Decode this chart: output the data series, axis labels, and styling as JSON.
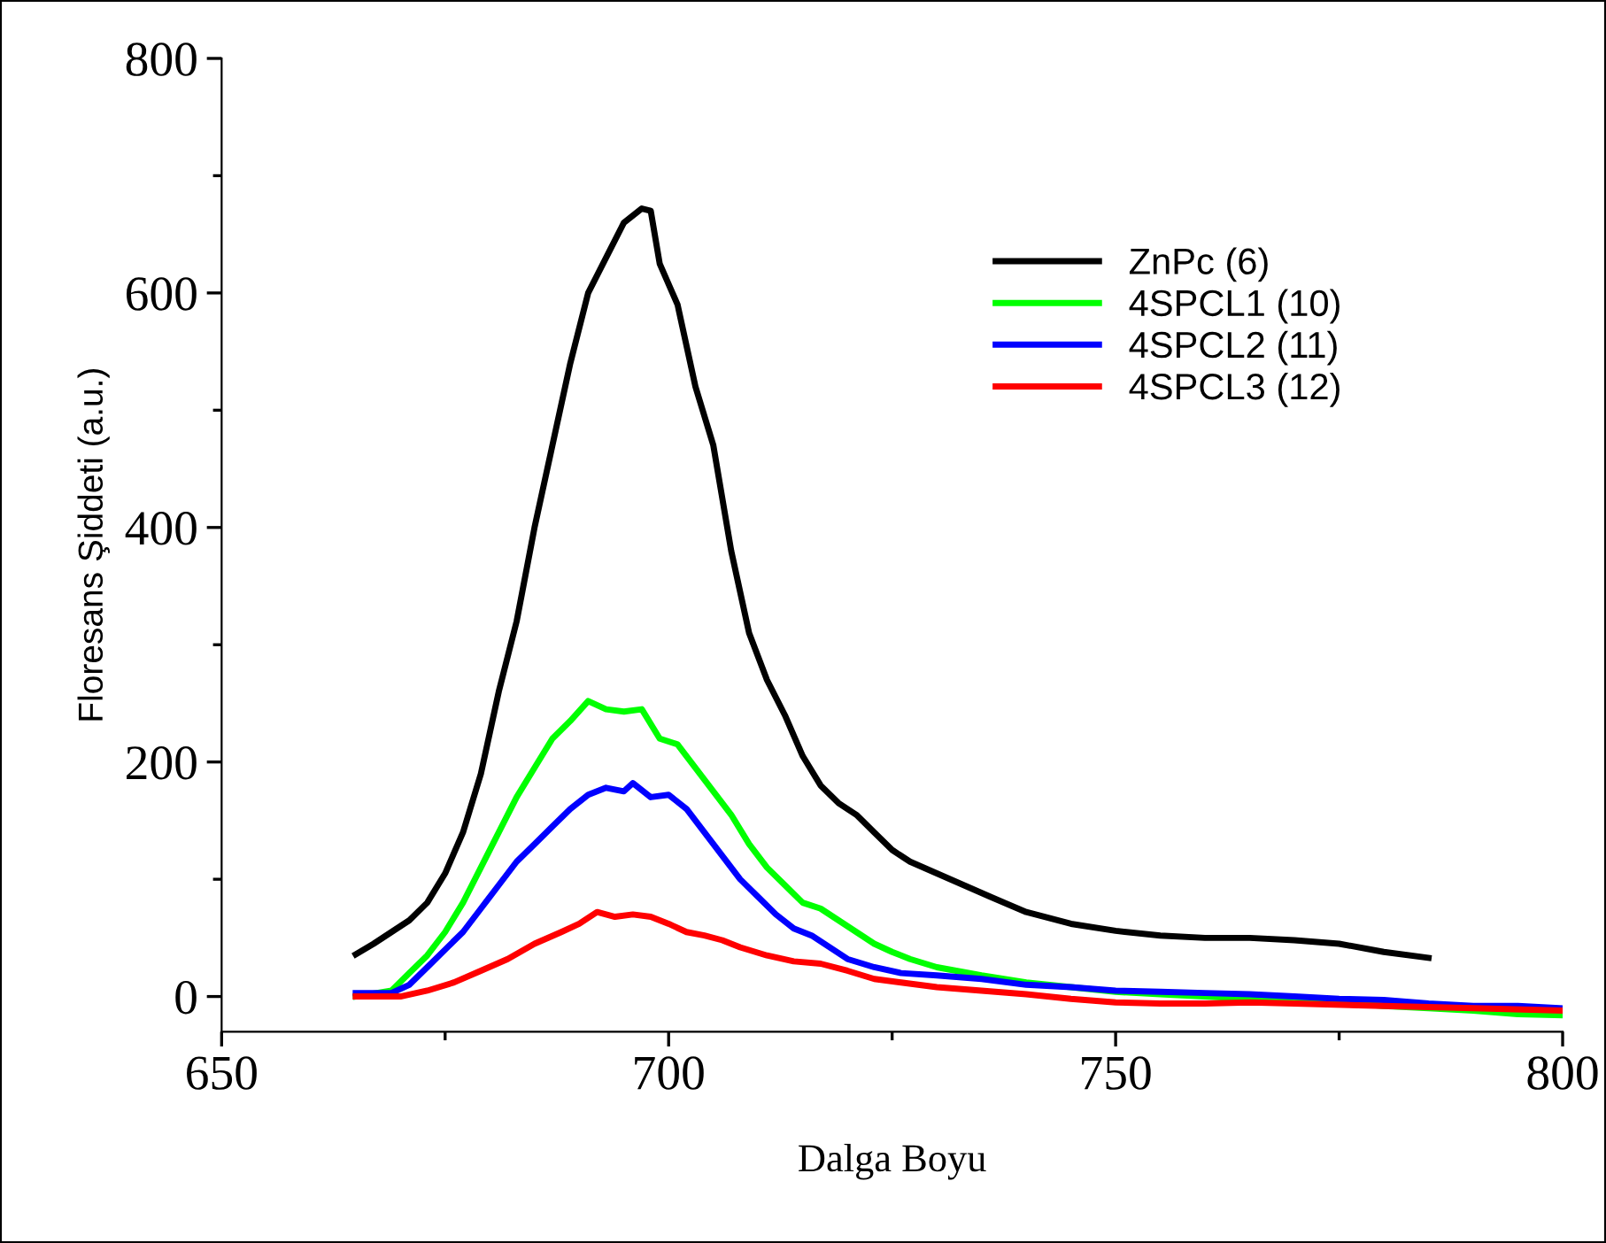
{
  "chart_data": {
    "type": "line",
    "xlabel": "Dalga Boyu",
    "ylabel": "Floresans Şiddeti (a.u.)",
    "xlim": [
      650,
      800
    ],
    "xticks": [
      650,
      {
        "value": 675,
        "label": null
      },
      700,
      {
        "value": 725,
        "label": null
      },
      750,
      {
        "value": 775,
        "label": null
      },
      800
    ],
    "ylim": [
      -30,
      800
    ],
    "yticks": [
      0,
      {
        "value": 100,
        "label": null
      },
      200,
      {
        "value": 300,
        "label": null
      },
      400,
      {
        "value": 500,
        "label": null
      },
      600,
      {
        "value": 700,
        "label": null
      },
      800
    ],
    "grid": false,
    "legend": "top right",
    "marker": "none",
    "line_style": "solid",
    "series": [
      {
        "name": "ZnPc (6)",
        "color": "#000000",
        "x": [
          665,
          667,
          669,
          671,
          673,
          675,
          677,
          679,
          681,
          683,
          685,
          687,
          689,
          691,
          693,
          695,
          697,
          698,
          699,
          701,
          703,
          705,
          707,
          709,
          711,
          713,
          715,
          717,
          719,
          721,
          723,
          725,
          727,
          730,
          733,
          736,
          740,
          745,
          750,
          755,
          760,
          765,
          770,
          775,
          780,
          785
        ],
        "values": [
          36,
          45,
          55,
          65,
          80,
          105,
          140,
          190,
          260,
          320,
          400,
          470,
          540,
          600,
          630,
          660,
          672,
          670,
          625,
          590,
          520,
          470,
          380,
          310,
          270,
          240,
          205,
          180,
          165,
          155,
          140,
          125,
          115,
          105,
          95,
          85,
          72,
          62,
          56,
          52,
          50,
          50,
          48,
          45,
          38,
          33
        ]
      },
      {
        "name": "4SPCL1 (10)",
        "color": "#00ff00",
        "x": [
          665,
          669,
          671,
          673,
          675,
          677,
          679,
          681,
          683,
          685,
          687,
          689,
          691,
          693,
          695,
          697,
          699,
          701,
          703,
          705,
          707,
          709,
          711,
          713,
          715,
          717,
          719,
          721,
          723,
          725,
          727,
          730,
          735,
          740,
          745,
          750,
          755,
          760,
          765,
          770,
          775,
          780,
          785,
          790,
          795,
          800
        ],
        "values": [
          0,
          5,
          20,
          35,
          55,
          80,
          110,
          140,
          170,
          195,
          220,
          235,
          252,
          245,
          243,
          245,
          220,
          215,
          195,
          175,
          155,
          130,
          110,
          95,
          80,
          75,
          65,
          55,
          45,
          38,
          32,
          25,
          18,
          12,
          8,
          4,
          2,
          0,
          -2,
          -4,
          -5,
          -8,
          -10,
          -12,
          -15,
          -16
        ]
      },
      {
        "name": "4SPCL2 (11)",
        "color": "#0000ff",
        "x": [
          665,
          669,
          671,
          673,
          675,
          677,
          679,
          681,
          683,
          685,
          687,
          689,
          691,
          693,
          695,
          696,
          698,
          700,
          702,
          704,
          706,
          708,
          710,
          712,
          714,
          716,
          718,
          720,
          723,
          726,
          730,
          735,
          740,
          745,
          750,
          755,
          760,
          765,
          770,
          775,
          780,
          785,
          790,
          795,
          800
        ],
        "values": [
          3,
          3,
          10,
          25,
          40,
          55,
          75,
          95,
          115,
          130,
          145,
          160,
          172,
          178,
          175,
          182,
          170,
          172,
          160,
          140,
          120,
          100,
          85,
          70,
          58,
          52,
          42,
          32,
          25,
          20,
          18,
          15,
          10,
          8,
          5,
          4,
          3,
          2,
          0,
          -2,
          -3,
          -6,
          -8,
          -8,
          -10
        ]
      },
      {
        "name": "4SPCL3 (12)",
        "color": "#ff0000",
        "x": [
          665,
          670,
          673,
          676,
          679,
          682,
          685,
          688,
          690,
          692,
          694,
          696,
          698,
          700,
          702,
          704,
          706,
          708,
          711,
          714,
          717,
          720,
          723,
          726,
          730,
          735,
          740,
          745,
          750,
          755,
          760,
          765,
          770,
          780,
          790,
          800
        ],
        "values": [
          0,
          0,
          5,
          12,
          22,
          32,
          45,
          55,
          62,
          72,
          68,
          70,
          68,
          62,
          55,
          52,
          48,
          42,
          35,
          30,
          28,
          22,
          15,
          12,
          8,
          5,
          2,
          -2,
          -5,
          -6,
          -6,
          -5,
          -6,
          -8,
          -10,
          -12
        ]
      }
    ]
  }
}
